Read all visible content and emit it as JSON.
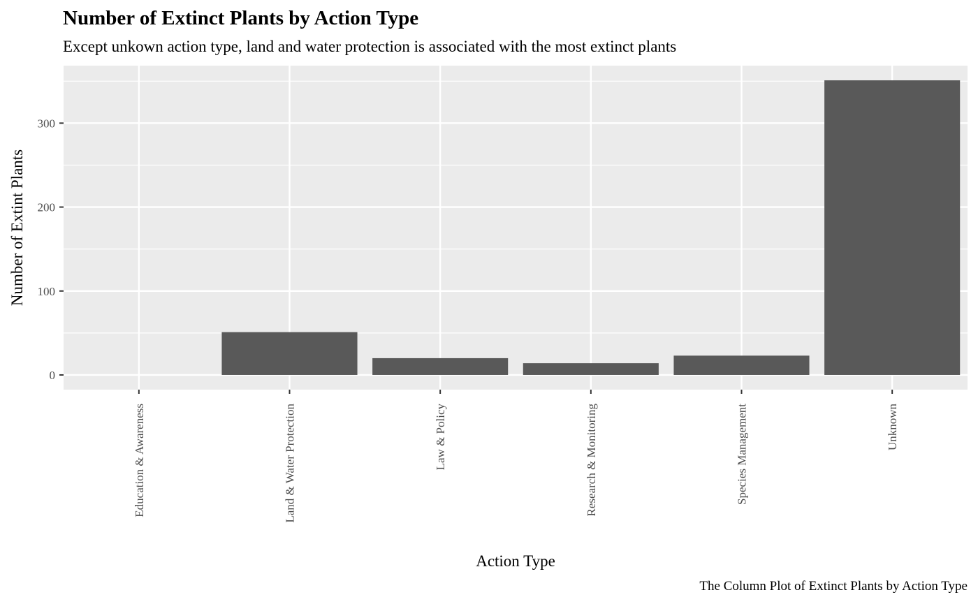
{
  "chart_data": {
    "type": "bar",
    "title": "Number of Extinct Plants by Action Type",
    "subtitle": "Except unkown action type, land and water protection is associated with the most extinct plants",
    "xlabel": "Action Type",
    "ylabel": "Number of Extint Plants",
    "caption": "The Column Plot of Extinct Plants by Action Type",
    "categories": [
      "Education & Awareness",
      "Land & Water Protection",
      "Law & Policy",
      "Research & Monitoring",
      "Species Management",
      "Unknown"
    ],
    "values": [
      0,
      51,
      20,
      14,
      23,
      351
    ],
    "y_ticks": [
      0,
      100,
      200,
      300
    ],
    "ylim": [
      -17.5,
      368.5
    ],
    "grid": true,
    "legend": "none",
    "colors": {
      "bar": "#595959",
      "panel": "#ebebeb",
      "grid": "#ffffff",
      "tick": "#333333"
    }
  }
}
